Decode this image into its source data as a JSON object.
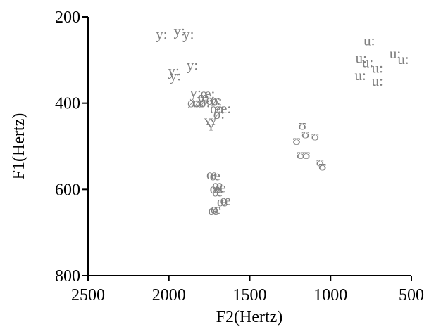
{
  "chart_data": {
    "type": "scatter",
    "title": "",
    "xlabel": "F2(Hertz)",
    "ylabel": "F1(Hertz)",
    "xlim": [
      2500,
      500
    ],
    "ylim": [
      800,
      200
    ],
    "x_reversed": true,
    "y_reversed": true,
    "xticks": [
      2500,
      2000,
      1500,
      1000,
      500
    ],
    "yticks": [
      200,
      400,
      600,
      800
    ],
    "grid": false,
    "colors": {
      "points": "#808080",
      "axes": "#000000"
    },
    "points": [
      {
        "label": "y:",
        "x": 2045,
        "y": 240
      },
      {
        "label": "y:",
        "x": 1935,
        "y": 232
      },
      {
        "label": "y:",
        "x": 1880,
        "y": 240
      },
      {
        "label": "y:",
        "x": 1855,
        "y": 312
      },
      {
        "label": "y:",
        "x": 1970,
        "y": 325
      },
      {
        "label": "y:",
        "x": 1960,
        "y": 336
      },
      {
        "label": "y:",
        "x": 1835,
        "y": 375
      },
      {
        "label": "œ:",
        "x": 1760,
        "y": 378
      },
      {
        "label": "y:",
        "x": 1790,
        "y": 390
      },
      {
        "label": "œ:",
        "x": 1775,
        "y": 385
      },
      {
        "label": "œ:",
        "x": 1725,
        "y": 392
      },
      {
        "label": "ø:",
        "x": 1850,
        "y": 398
      },
      {
        "label": "ø:",
        "x": 1815,
        "y": 398
      },
      {
        "label": "ø:",
        "x": 1780,
        "y": 398
      },
      {
        "label": "ø:",
        "x": 1705,
        "y": 395
      },
      {
        "label": "œ:",
        "x": 1700,
        "y": 412
      },
      {
        "label": "œ:",
        "x": 1660,
        "y": 412
      },
      {
        "label": "ø:",
        "x": 1690,
        "y": 425
      },
      {
        "label": "ʏ",
        "x": 1760,
        "y": 440
      },
      {
        "label": "ʏ",
        "x": 1740,
        "y": 452
      },
      {
        "label": "ʏ",
        "x": 1725,
        "y": 440
      },
      {
        "label": "œ",
        "x": 1735,
        "y": 565
      },
      {
        "label": "œ",
        "x": 1715,
        "y": 568
      },
      {
        "label": "œ",
        "x": 1700,
        "y": 590
      },
      {
        "label": "œ",
        "x": 1680,
        "y": 595
      },
      {
        "label": "œ",
        "x": 1715,
        "y": 598
      },
      {
        "label": "œ",
        "x": 1700,
        "y": 605
      },
      {
        "label": "œ",
        "x": 1670,
        "y": 628
      },
      {
        "label": "œ",
        "x": 1650,
        "y": 625
      },
      {
        "label": "œ",
        "x": 1725,
        "y": 648
      },
      {
        "label": "œ",
        "x": 1710,
        "y": 645
      },
      {
        "label": "ʊ",
        "x": 1175,
        "y": 450
      },
      {
        "label": "ʊ",
        "x": 1155,
        "y": 470
      },
      {
        "label": "ʊ",
        "x": 1210,
        "y": 485
      },
      {
        "label": "ʊ",
        "x": 1095,
        "y": 475
      },
      {
        "label": "ʊ",
        "x": 1185,
        "y": 518
      },
      {
        "label": "ʊ",
        "x": 1150,
        "y": 518
      },
      {
        "label": "ʊ",
        "x": 1065,
        "y": 535
      },
      {
        "label": "ʊ",
        "x": 1050,
        "y": 545
      },
      {
        "label": "u:",
        "x": 760,
        "y": 255
      },
      {
        "label": "u:",
        "x": 600,
        "y": 285
      },
      {
        "label": "u:",
        "x": 550,
        "y": 298
      },
      {
        "label": "u:",
        "x": 810,
        "y": 295
      },
      {
        "label": "u:",
        "x": 770,
        "y": 305
      },
      {
        "label": "u:",
        "x": 710,
        "y": 318
      },
      {
        "label": "u:",
        "x": 815,
        "y": 335
      },
      {
        "label": "u:",
        "x": 710,
        "y": 348
      }
    ]
  }
}
